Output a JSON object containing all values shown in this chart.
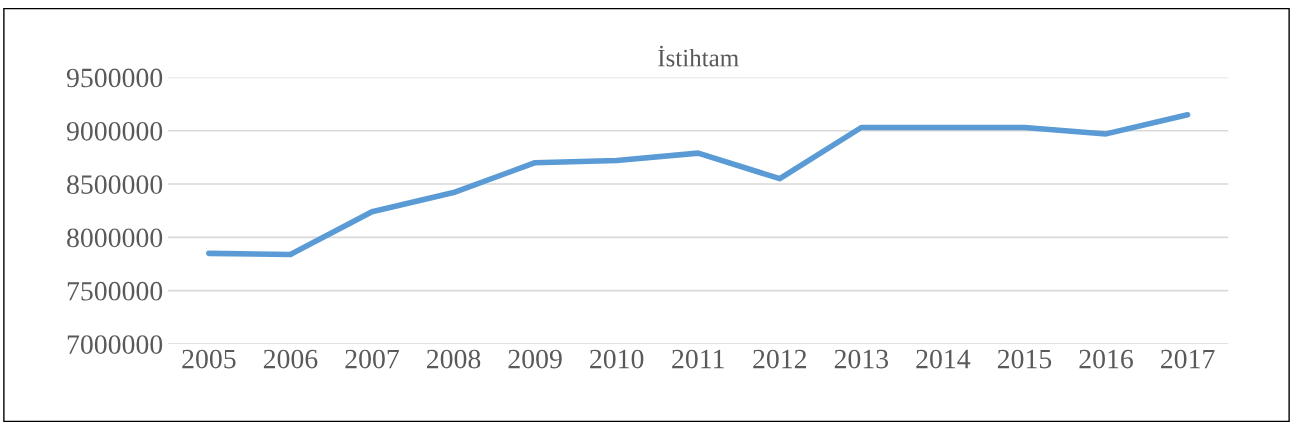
{
  "chart_data": {
    "type": "line",
    "title": "İstihtam",
    "categories": [
      "2005",
      "2006",
      "2007",
      "2008",
      "2009",
      "2010",
      "2011",
      "2012",
      "2013",
      "2014",
      "2015",
      "2016",
      "2017"
    ],
    "series": [
      {
        "color": "#5b9bd5",
        "values": [
          7850000,
          7840000,
          8240000,
          8420000,
          8700000,
          8720000,
          8790000,
          8550000,
          9030000,
          9030000,
          9030000,
          8970000,
          9150000
        ]
      }
    ],
    "ylim": [
      7000000,
      9500000
    ],
    "yticks": [
      7000000,
      7500000,
      8000000,
      8500000,
      9000000,
      9500000
    ],
    "grid": "y",
    "legend": false,
    "marker": "none",
    "line_style": "solid"
  }
}
